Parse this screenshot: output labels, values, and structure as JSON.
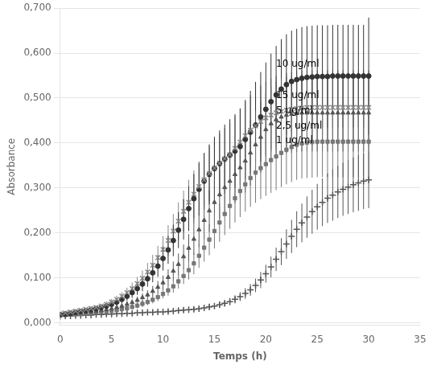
{
  "chart_data": {
    "type": "scatter",
    "xlabel": "Temps (h)",
    "ylabel": "Absorbance",
    "xlim": [
      0,
      35
    ],
    "ylim": [
      -0.005,
      0.7
    ],
    "xticks": [
      0,
      5,
      10,
      15,
      20,
      25,
      30,
      35
    ],
    "yticks": [
      {
        "value": 0.0,
        "label": "0,000"
      },
      {
        "value": 0.1,
        "label": "0,100"
      },
      {
        "value": 0.2,
        "label": "0,200"
      },
      {
        "value": 0.3,
        "label": "0,300"
      },
      {
        "value": 0.4,
        "label": "0,400"
      },
      {
        "value": 0.5,
        "label": "0,500"
      },
      {
        "value": 0.6,
        "label": "0,600"
      },
      {
        "value": 0.7,
        "label": "0,700"
      }
    ],
    "grid": "y",
    "x": [
      0,
      0.5,
      1,
      1.5,
      2,
      2.5,
      3,
      3.5,
      4,
      4.5,
      5,
      5.5,
      6,
      6.5,
      7,
      7.5,
      8,
      8.5,
      9,
      9.5,
      10,
      10.5,
      11,
      11.5,
      12,
      12.5,
      13,
      13.5,
      14,
      14.5,
      15,
      15.5,
      16,
      16.5,
      17,
      17.5,
      18,
      18.5,
      19,
      19.5,
      20,
      20.5,
      21,
      21.5,
      22,
      22.5,
      23,
      23.5,
      24,
      24.5,
      25,
      25.5,
      26,
      26.5,
      27,
      27.5,
      28,
      28.5,
      29,
      29.5,
      30
    ],
    "series": [
      {
        "name": "15 ug/ml",
        "color": "#888888",
        "marker": "x",
        "values": [
          0.02,
          0.022,
          0.024,
          0.026,
          0.028,
          0.03,
          0.032,
          0.034,
          0.037,
          0.041,
          0.046,
          0.052,
          0.059,
          0.067,
          0.076,
          0.087,
          0.099,
          0.113,
          0.128,
          0.145,
          0.163,
          0.183,
          0.204,
          0.226,
          0.248,
          0.268,
          0.286,
          0.303,
          0.318,
          0.332,
          0.344,
          0.355,
          0.365,
          0.374,
          0.388,
          0.402,
          0.416,
          0.428,
          0.438,
          0.448,
          0.456,
          0.462,
          0.467,
          0.47,
          0.473,
          0.475,
          0.477,
          0.478,
          0.479,
          0.479,
          0.479,
          0.479,
          0.479,
          0.479,
          0.479,
          0.479,
          0.479,
          0.479,
          0.479,
          0.479,
          0.479
        ],
        "yerr": [
          0.003,
          0.003,
          0.003,
          0.003,
          0.003,
          0.003,
          0.004,
          0.004,
          0.005,
          0.006,
          0.007,
          0.008,
          0.009,
          0.011,
          0.013,
          0.015,
          0.017,
          0.02,
          0.023,
          0.026,
          0.03,
          0.034,
          0.038,
          0.042,
          0.046,
          0.05,
          0.053,
          0.056,
          0.059,
          0.062,
          0.064,
          0.066,
          0.068,
          0.07,
          0.072,
          0.074,
          0.076,
          0.078,
          0.079,
          0.08,
          0.081,
          0.082,
          0.082,
          0.083,
          0.083,
          0.083,
          0.083,
          0.083,
          0.083,
          0.083,
          0.083,
          0.083,
          0.083,
          0.083,
          0.083,
          0.083,
          0.083,
          0.083,
          0.083,
          0.083,
          0.083
        ]
      },
      {
        "name": "10 ug/ml",
        "color": "#333333",
        "marker": "o",
        "values": [
          0.018,
          0.019,
          0.021,
          0.023,
          0.025,
          0.027,
          0.029,
          0.031,
          0.034,
          0.037,
          0.041,
          0.046,
          0.052,
          0.059,
          0.067,
          0.076,
          0.086,
          0.098,
          0.111,
          0.126,
          0.143,
          0.162,
          0.183,
          0.206,
          0.23,
          0.254,
          0.276,
          0.297,
          0.315,
          0.33,
          0.343,
          0.354,
          0.364,
          0.373,
          0.382,
          0.392,
          0.408,
          0.424,
          0.44,
          0.458,
          0.475,
          0.492,
          0.507,
          0.52,
          0.53,
          0.537,
          0.541,
          0.544,
          0.546,
          0.547,
          0.548,
          0.548,
          0.548,
          0.549,
          0.549,
          0.549,
          0.549,
          0.549,
          0.549,
          0.549,
          0.549
        ],
        "yerr": [
          0.003,
          0.003,
          0.003,
          0.003,
          0.004,
          0.004,
          0.004,
          0.005,
          0.005,
          0.006,
          0.007,
          0.008,
          0.009,
          0.01,
          0.012,
          0.014,
          0.016,
          0.018,
          0.021,
          0.024,
          0.027,
          0.031,
          0.035,
          0.04,
          0.045,
          0.05,
          0.055,
          0.059,
          0.063,
          0.067,
          0.071,
          0.074,
          0.077,
          0.08,
          0.082,
          0.085,
          0.088,
          0.092,
          0.096,
          0.1,
          0.104,
          0.107,
          0.109,
          0.111,
          0.112,
          0.113,
          0.113,
          0.114,
          0.114,
          0.114,
          0.114,
          0.114,
          0.114,
          0.114,
          0.114,
          0.114,
          0.114,
          0.114,
          0.114,
          0.114,
          0.13
        ]
      },
      {
        "name": "5 ug/ml",
        "color": "#555555",
        "marker": "^",
        "values": [
          0.018,
          0.019,
          0.02,
          0.021,
          0.022,
          0.023,
          0.024,
          0.025,
          0.027,
          0.029,
          0.031,
          0.034,
          0.037,
          0.041,
          0.045,
          0.05,
          0.056,
          0.062,
          0.07,
          0.079,
          0.089,
          0.101,
          0.115,
          0.13,
          0.147,
          0.166,
          0.186,
          0.207,
          0.228,
          0.249,
          0.268,
          0.285,
          0.301,
          0.315,
          0.33,
          0.345,
          0.36,
          0.378,
          0.396,
          0.413,
          0.43,
          0.443,
          0.452,
          0.458,
          0.462,
          0.464,
          0.466,
          0.467,
          0.467,
          0.467,
          0.467,
          0.467,
          0.467,
          0.467,
          0.467,
          0.467,
          0.467,
          0.467,
          0.467,
          0.467,
          0.467
        ],
        "yerr": [
          0.003,
          0.003,
          0.003,
          0.003,
          0.003,
          0.003,
          0.003,
          0.004,
          0.004,
          0.004,
          0.005,
          0.005,
          0.006,
          0.007,
          0.007,
          0.008,
          0.009,
          0.01,
          0.012,
          0.014,
          0.016,
          0.018,
          0.021,
          0.024,
          0.027,
          0.031,
          0.035,
          0.039,
          0.043,
          0.047,
          0.051,
          0.055,
          0.058,
          0.061,
          0.064,
          0.067,
          0.07,
          0.073,
          0.076,
          0.079,
          0.081,
          0.083,
          0.084,
          0.085,
          0.085,
          0.086,
          0.086,
          0.086,
          0.086,
          0.086,
          0.086,
          0.086,
          0.086,
          0.086,
          0.086,
          0.086,
          0.086,
          0.086,
          0.086,
          0.086,
          0.086
        ]
      },
      {
        "name": "2,5 ug/ml",
        "color": "#777777",
        "marker": "s",
        "values": [
          0.016,
          0.017,
          0.018,
          0.019,
          0.02,
          0.021,
          0.022,
          0.023,
          0.024,
          0.025,
          0.026,
          0.028,
          0.03,
          0.032,
          0.035,
          0.038,
          0.042,
          0.046,
          0.051,
          0.057,
          0.064,
          0.072,
          0.081,
          0.092,
          0.104,
          0.117,
          0.132,
          0.149,
          0.167,
          0.185,
          0.204,
          0.223,
          0.242,
          0.26,
          0.277,
          0.293,
          0.308,
          0.322,
          0.334,
          0.344,
          0.353,
          0.362,
          0.37,
          0.378,
          0.385,
          0.391,
          0.396,
          0.399,
          0.401,
          0.402,
          0.403,
          0.403,
          0.403,
          0.403,
          0.403,
          0.403,
          0.403,
          0.403,
          0.403,
          0.403,
          0.403
        ],
        "yerr": [
          0.002,
          0.002,
          0.002,
          0.003,
          0.003,
          0.003,
          0.003,
          0.003,
          0.003,
          0.003,
          0.004,
          0.004,
          0.004,
          0.005,
          0.005,
          0.006,
          0.007,
          0.007,
          0.008,
          0.009,
          0.01,
          0.012,
          0.014,
          0.016,
          0.018,
          0.021,
          0.024,
          0.027,
          0.031,
          0.035,
          0.039,
          0.043,
          0.047,
          0.051,
          0.054,
          0.058,
          0.061,
          0.064,
          0.067,
          0.069,
          0.071,
          0.073,
          0.075,
          0.076,
          0.077,
          0.078,
          0.078,
          0.078,
          0.079,
          0.079,
          0.079,
          0.079,
          0.079,
          0.079,
          0.079,
          0.079,
          0.079,
          0.079,
          0.079,
          0.079,
          0.079
        ]
      },
      {
        "name": "1 ug/ml",
        "color": "#555555",
        "marker": "+",
        "values": [
          0.014,
          0.015,
          0.015,
          0.016,
          0.016,
          0.017,
          0.017,
          0.018,
          0.018,
          0.019,
          0.019,
          0.02,
          0.02,
          0.021,
          0.021,
          0.022,
          0.022,
          0.023,
          0.023,
          0.024,
          0.024,
          0.025,
          0.026,
          0.027,
          0.028,
          0.029,
          0.03,
          0.031,
          0.033,
          0.035,
          0.037,
          0.04,
          0.043,
          0.047,
          0.052,
          0.058,
          0.065,
          0.073,
          0.083,
          0.095,
          0.109,
          0.124,
          0.141,
          0.158,
          0.175,
          0.192,
          0.208,
          0.222,
          0.235,
          0.247,
          0.258,
          0.268,
          0.277,
          0.284,
          0.291,
          0.297,
          0.302,
          0.307,
          0.311,
          0.315,
          0.318
        ],
        "yerr": [
          0.002,
          0.002,
          0.002,
          0.002,
          0.002,
          0.002,
          0.002,
          0.002,
          0.002,
          0.002,
          0.002,
          0.003,
          0.003,
          0.003,
          0.003,
          0.003,
          0.003,
          0.003,
          0.003,
          0.003,
          0.003,
          0.004,
          0.004,
          0.004,
          0.004,
          0.004,
          0.005,
          0.005,
          0.005,
          0.006,
          0.006,
          0.007,
          0.007,
          0.008,
          0.009,
          0.01,
          0.012,
          0.013,
          0.015,
          0.018,
          0.02,
          0.023,
          0.026,
          0.03,
          0.033,
          0.037,
          0.04,
          0.043,
          0.046,
          0.049,
          0.051,
          0.053,
          0.055,
          0.057,
          0.058,
          0.059,
          0.06,
          0.061,
          0.062,
          0.062,
          0.063
        ]
      }
    ],
    "annotations": [
      {
        "text": "10 ug/ml",
        "x": 21.0,
        "y": 0.575
      },
      {
        "text": "15 ug/ml",
        "x": 21.0,
        "y": 0.505
      },
      {
        "text": "5 ug/ml",
        "x": 21.0,
        "y": 0.472
      },
      {
        "text": "2,5 ug/ml",
        "x": 21.0,
        "y": 0.438
      },
      {
        "text": "1 ug/ml",
        "x": 21.0,
        "y": 0.405
      }
    ]
  }
}
